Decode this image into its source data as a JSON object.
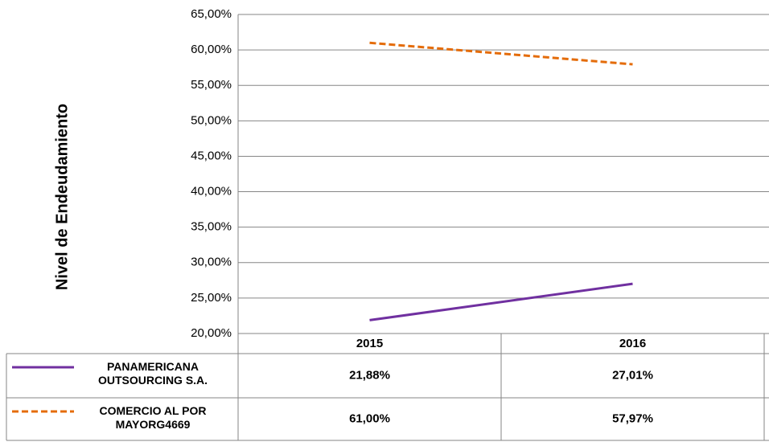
{
  "chart_data": {
    "type": "line",
    "y_label": "Nivel de Endeudamiento",
    "categories": [
      "2015",
      "2016"
    ],
    "series": [
      {
        "name": "PANAMERICANA OUTSOURCING S.A.",
        "color": "#7030a0",
        "dash": false,
        "values": [
          21.88,
          27.01
        ],
        "value_labels": [
          "21,88%",
          "27,01%"
        ]
      },
      {
        "name": "COMERCIO AL POR MAYORG4669",
        "color": "#e46c0a",
        "dash": true,
        "values": [
          61.0,
          57.97
        ],
        "value_labels": [
          "61,00%",
          "57,97%"
        ]
      }
    ],
    "ylim": [
      20,
      65
    ],
    "yticks": [
      {
        "value": 20,
        "label": "20,00%"
      },
      {
        "value": 25,
        "label": "25,00%"
      },
      {
        "value": 30,
        "label": "30,00%"
      },
      {
        "value": 35,
        "label": "35,00%"
      },
      {
        "value": 40,
        "label": "40,00%"
      },
      {
        "value": 45,
        "label": "45,00%"
      },
      {
        "value": 50,
        "label": "50,00%"
      },
      {
        "value": 55,
        "label": "55,00%"
      },
      {
        "value": 60,
        "label": "60,00%"
      },
      {
        "value": 65,
        "label": "65,00%"
      }
    ],
    "grid": true
  }
}
